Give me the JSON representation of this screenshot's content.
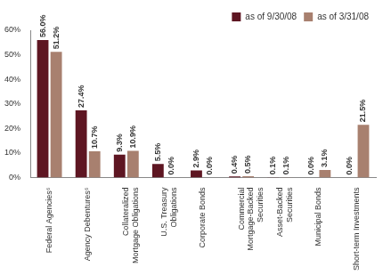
{
  "chart_data": {
    "type": "bar",
    "categories": [
      "Federal Agencies⁶",
      "Agency Debentures⁶",
      "Collateralized Mortgage Obligations",
      "U.S. Treasury Obligations",
      "Corporate Bonds",
      "Commercial Mortgage-Backed Securities",
      "Asset-Backed Securities",
      "Municipal Bonds",
      "Short-term Investments"
    ],
    "series": [
      {
        "name": "as of 9/30/08",
        "color": "#5e1622",
        "values": [
          56.0,
          27.4,
          9.3,
          5.5,
          2.9,
          0.4,
          0.1,
          0.0,
          0.0
        ],
        "value_labels": [
          "56.0%",
          "27.4%",
          "9.3%",
          "5.5%",
          "2.9%",
          "0.4%",
          "0.1%",
          "0.0%",
          "0.0%"
        ]
      },
      {
        "name": "as of 3/31/08",
        "color": "#a8806f",
        "values": [
          51.2,
          10.7,
          10.9,
          0.0,
          0.0,
          0.5,
          0.1,
          3.1,
          21.5
        ],
        "value_labels": [
          "51.2%",
          "10.7%",
          "10.9%",
          "0.0%",
          "0.0%",
          "0.5%",
          "0.1%",
          "3.1%",
          "21.5%"
        ]
      }
    ],
    "ylim": [
      0,
      60
    ],
    "yticks": [
      {
        "value": 0,
        "label": "0%"
      },
      {
        "value": 10,
        "label": "10%"
      },
      {
        "value": 20,
        "label": "20%"
      },
      {
        "value": 30,
        "label": "30%"
      },
      {
        "value": 40,
        "label": "40%"
      },
      {
        "value": 50,
        "label": "50%"
      },
      {
        "value": 60,
        "label": "60%"
      }
    ],
    "grid": false,
    "legend": "top-right",
    "data_labels": true
  }
}
